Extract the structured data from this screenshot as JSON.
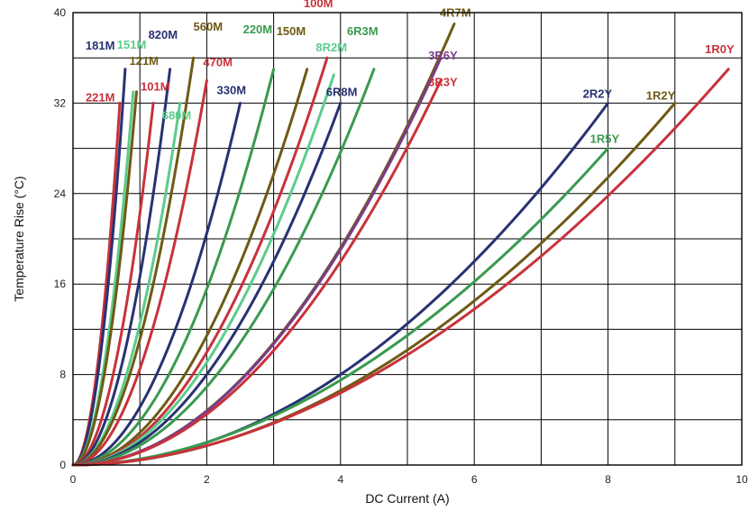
{
  "colors": {
    "red": "#c8323c",
    "navy": "#283272",
    "olive": "#6e5a14",
    "green": "#3a9a50",
    "lightgreen": "#5ccc8c",
    "purple": "#7a3c8c",
    "grid": "#000000",
    "background": "#ffffff"
  },
  "chart_data": {
    "type": "line",
    "title": "",
    "xlabel": "DC Current (A)",
    "ylabel": "Temperature Rise (°C)",
    "xlim": [
      0,
      10
    ],
    "ylim": [
      0,
      40
    ],
    "xticks": [
      0,
      2,
      4,
      6,
      8,
      10
    ],
    "yticks": [
      0,
      8,
      16,
      24,
      32,
      40
    ],
    "grid": true,
    "legend": "labels at end of each curve",
    "series": [
      {
        "name": "221M",
        "color": "red",
        "x_end": 0.7,
        "y_end": 32,
        "exponent": 2.0
      },
      {
        "name": "181M",
        "color": "navy",
        "x_end": 0.78,
        "y_end": 35,
        "exponent": 2.0
      },
      {
        "name": "151M",
        "color": "lightgreen",
        "x_end": 0.9,
        "y_end": 33,
        "exponent": 2.0
      },
      {
        "name": "121M",
        "color": "olive",
        "x_end": 0.95,
        "y_end": 33,
        "exponent": 2.0
      },
      {
        "name": "101M",
        "color": "red",
        "x_end": 1.2,
        "y_end": 32,
        "exponent": 2.0
      },
      {
        "name": "820M",
        "color": "navy",
        "x_end": 1.45,
        "y_end": 35,
        "exponent": 2.0
      },
      {
        "name": "680M",
        "color": "lightgreen",
        "x_end": 1.6,
        "y_end": 32,
        "exponent": 2.0
      },
      {
        "name": "560M",
        "color": "olive",
        "x_end": 1.8,
        "y_end": 36,
        "exponent": 2.0
      },
      {
        "name": "470M",
        "color": "red",
        "x_end": 2.0,
        "y_end": 34,
        "exponent": 2.0
      },
      {
        "name": "330M",
        "color": "navy",
        "x_end": 2.5,
        "y_end": 32,
        "exponent": 2.0
      },
      {
        "name": "220M",
        "color": "green",
        "x_end": 3.0,
        "y_end": 35,
        "exponent": 2.0
      },
      {
        "name": "150M",
        "color": "olive",
        "x_end": 3.5,
        "y_end": 35,
        "exponent": 2.0
      },
      {
        "name": "100M",
        "color": "red",
        "x_end": 3.8,
        "y_end": 36,
        "exponent": 2.0
      },
      {
        "name": "8R2M",
        "color": "lightgreen",
        "x_end": 3.9,
        "y_end": 34.5,
        "exponent": 2.0
      },
      {
        "name": "6R8M",
        "color": "navy",
        "x_end": 4.0,
        "y_end": 32,
        "exponent": 2.0
      },
      {
        "name": "6R3M",
        "color": "green",
        "x_end": 4.5,
        "y_end": 35,
        "exponent": 2.0
      },
      {
        "name": "4R7M",
        "color": "olive",
        "x_end": 5.7,
        "y_end": 39,
        "exponent": 2.0
      },
      {
        "name": "3R6Y",
        "color": "purple",
        "x_end": 5.5,
        "y_end": 36,
        "exponent": 2.0
      },
      {
        "name": "3R3Y",
        "color": "red",
        "x_end": 5.5,
        "y_end": 34,
        "exponent": 2.0
      },
      {
        "name": "2R2Y",
        "color": "navy",
        "x_end": 8.0,
        "y_end": 32,
        "exponent": 2.0
      },
      {
        "name": "1R5Y",
        "color": "green",
        "x_end": 8.0,
        "y_end": 28,
        "exponent": 1.9
      },
      {
        "name": "1R2Y",
        "color": "olive",
        "x_end": 9.0,
        "y_end": 32,
        "exponent": 1.95
      },
      {
        "name": "1R0Y",
        "color": "red",
        "x_end": 9.8,
        "y_end": 35,
        "exponent": 1.9
      }
    ]
  }
}
